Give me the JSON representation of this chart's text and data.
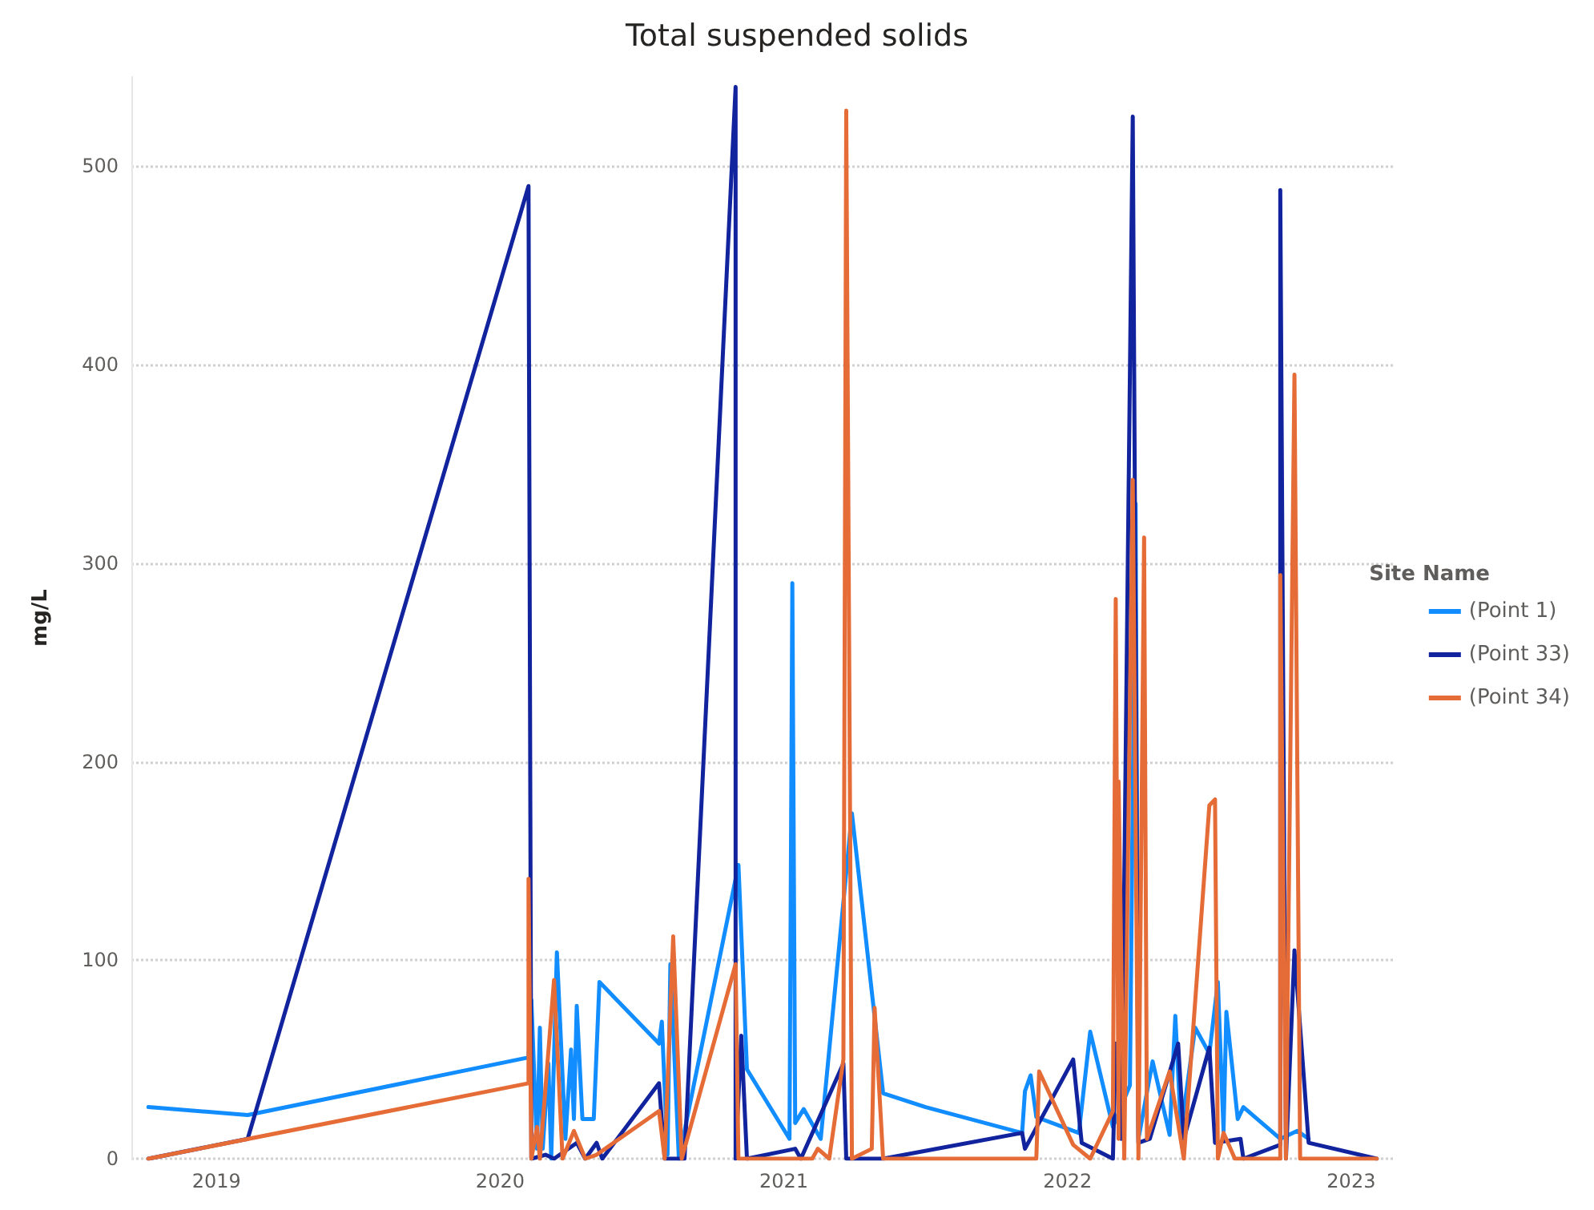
{
  "chart_data": {
    "type": "line",
    "title": "Total suspended solids",
    "ylabel": "mg/L",
    "legend_title": "Site Name",
    "legend": "right",
    "grid": "y",
    "line_style": "solid",
    "marker": "none",
    "xlim": [
      2018.7,
      2023.15
    ],
    "xticks": [
      2019,
      2020,
      2021,
      2022,
      2023
    ],
    "ylim": [
      0,
      545
    ],
    "yticks": [
      0,
      100,
      200,
      300,
      400,
      500
    ],
    "series": [
      {
        "name": "(Point 1)",
        "color": "#118dff",
        "x": [
          2018.76,
          2019.11,
          2020.1,
          2020.11,
          2020.13,
          2020.14,
          2020.15,
          2020.17,
          2020.18,
          2020.2,
          2020.23,
          2020.25,
          2020.26,
          2020.27,
          2020.29,
          2020.33,
          2020.35,
          2020.56,
          2020.57,
          2020.59,
          2020.6,
          2020.63,
          2020.84,
          2020.87,
          2021.02,
          2021.03,
          2021.04,
          2021.07,
          2021.13,
          2021.24,
          2021.35,
          2021.5,
          2021.84,
          2021.85,
          2021.87,
          2021.89,
          2022.04,
          2022.08,
          2022.16,
          2022.22,
          2022.24,
          2022.25,
          2022.3,
          2022.36,
          2022.38,
          2022.4,
          2022.45,
          2022.5,
          2022.53,
          2022.55,
          2022.56,
          2022.6,
          2022.62,
          2022.75,
          2022.81,
          2022.85
        ],
        "values": [
          26,
          22,
          51,
          80,
          5,
          66,
          5,
          48,
          0,
          104,
          10,
          55,
          20,
          77,
          20,
          20,
          89,
          58,
          69,
          2,
          98,
          0,
          148,
          45,
          10,
          290,
          18,
          25,
          10,
          174,
          33,
          26,
          13,
          34,
          42,
          21,
          13,
          64,
          16,
          37,
          330,
          10,
          49,
          12,
          72,
          14,
          66,
          53,
          89,
          14,
          74,
          20,
          26,
          10,
          14,
          10
        ]
      },
      {
        "name": "(Point 33)",
        "color": "#12239e",
        "x": [
          2018.76,
          2019.11,
          2020.1,
          2020.11,
          2020.16,
          2020.19,
          2020.27,
          2020.3,
          2020.34,
          2020.36,
          2020.56,
          2020.58,
          2020.65,
          2020.83,
          2020.83,
          2020.85,
          2020.87,
          2021.04,
          2021.06,
          2021.21,
          2021.22,
          2021.35,
          2021.84,
          2021.85,
          2022.02,
          2022.05,
          2022.16,
          2022.17,
          2022.19,
          2022.23,
          2022.25,
          2022.29,
          2022.39,
          2022.41,
          2022.5,
          2022.52,
          2022.61,
          2022.62,
          2022.75,
          2022.75,
          2022.77,
          2022.8,
          2022.85,
          2023.09
        ],
        "values": [
          0,
          10,
          490,
          0,
          2,
          0,
          8,
          0,
          8,
          0,
          38,
          0,
          0,
          540,
          0,
          62,
          0,
          5,
          0,
          48,
          0,
          0,
          13,
          5,
          50,
          8,
          0,
          58,
          10,
          525,
          8,
          10,
          58,
          10,
          56,
          8,
          10,
          0,
          7,
          488,
          0,
          105,
          8,
          0
        ]
      },
      {
        "name": "(Point 34)",
        "color": "#e66c37",
        "x": [
          2018.76,
          2020.1,
          2020.1,
          2020.11,
          2020.13,
          2020.14,
          2020.19,
          2020.22,
          2020.26,
          2020.3,
          2020.34,
          2020.56,
          2020.58,
          2020.61,
          2020.64,
          2020.83,
          2020.84,
          2021.1,
          2021.12,
          2021.16,
          2021.21,
          2021.22,
          2021.24,
          2021.31,
          2021.32,
          2021.35,
          2021.89,
          2021.9,
          2022.02,
          2022.08,
          2022.16,
          2022.17,
          2022.18,
          2022.18,
          2022.2,
          2022.23,
          2022.25,
          2022.27,
          2022.28,
          2022.36,
          2022.41,
          2022.5,
          2022.52,
          2022.53,
          2022.55,
          2022.59,
          2022.75,
          2022.75,
          2022.77,
          2022.8,
          2022.82,
          2023.09
        ],
        "values": [
          0,
          38,
          141,
          0,
          16,
          0,
          90,
          0,
          14,
          0,
          2,
          24,
          0,
          112,
          0,
          98,
          0,
          0,
          5,
          0,
          50,
          528,
          0,
          5,
          76,
          0,
          0,
          44,
          7,
          0,
          24,
          282,
          10,
          190,
          0,
          342,
          0,
          313,
          10,
          44,
          0,
          178,
          181,
          0,
          13,
          0,
          0,
          294,
          0,
          395,
          0,
          0
        ]
      }
    ]
  }
}
